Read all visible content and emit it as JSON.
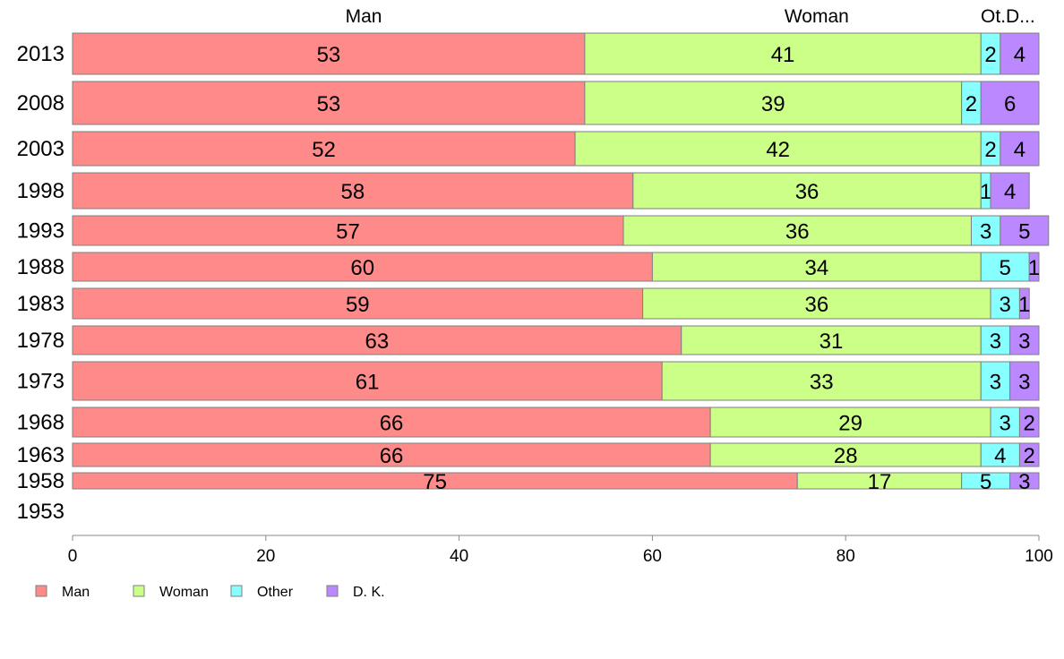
{
  "chart_data": {
    "type": "bar",
    "orientation": "horizontal",
    "stacked": true,
    "column_headers": [
      "Man",
      "Woman",
      "Ot.D..."
    ],
    "categories": [
      "2013",
      "2008",
      "2003",
      "1998",
      "1993",
      "1988",
      "1983",
      "1978",
      "1973",
      "1968",
      "1963",
      "1958",
      "1953"
    ],
    "series": [
      {
        "name": "Man",
        "color": "#FF8A8A",
        "values": [
          53,
          53,
          52,
          58,
          57,
          60,
          59,
          63,
          61,
          66,
          66,
          75,
          null
        ]
      },
      {
        "name": "Woman",
        "color": "#CCFF88",
        "values": [
          41,
          39,
          42,
          36,
          36,
          34,
          36,
          31,
          33,
          29,
          28,
          17,
          null
        ]
      },
      {
        "name": "Other",
        "color": "#88FFFF",
        "values": [
          2,
          2,
          2,
          1,
          3,
          5,
          3,
          3,
          3,
          3,
          4,
          5,
          null
        ]
      },
      {
        "name": "D. K.",
        "color": "#BB88FF",
        "values": [
          4,
          6,
          4,
          4,
          5,
          1,
          1,
          3,
          3,
          2,
          2,
          3,
          null
        ]
      }
    ],
    "xlim": [
      0,
      100
    ],
    "x_ticks": [
      0,
      20,
      40,
      60,
      80,
      100
    ],
    "legend_position": "bottom-left",
    "grid": false,
    "title": "",
    "xlabel": "",
    "ylabel": ""
  }
}
